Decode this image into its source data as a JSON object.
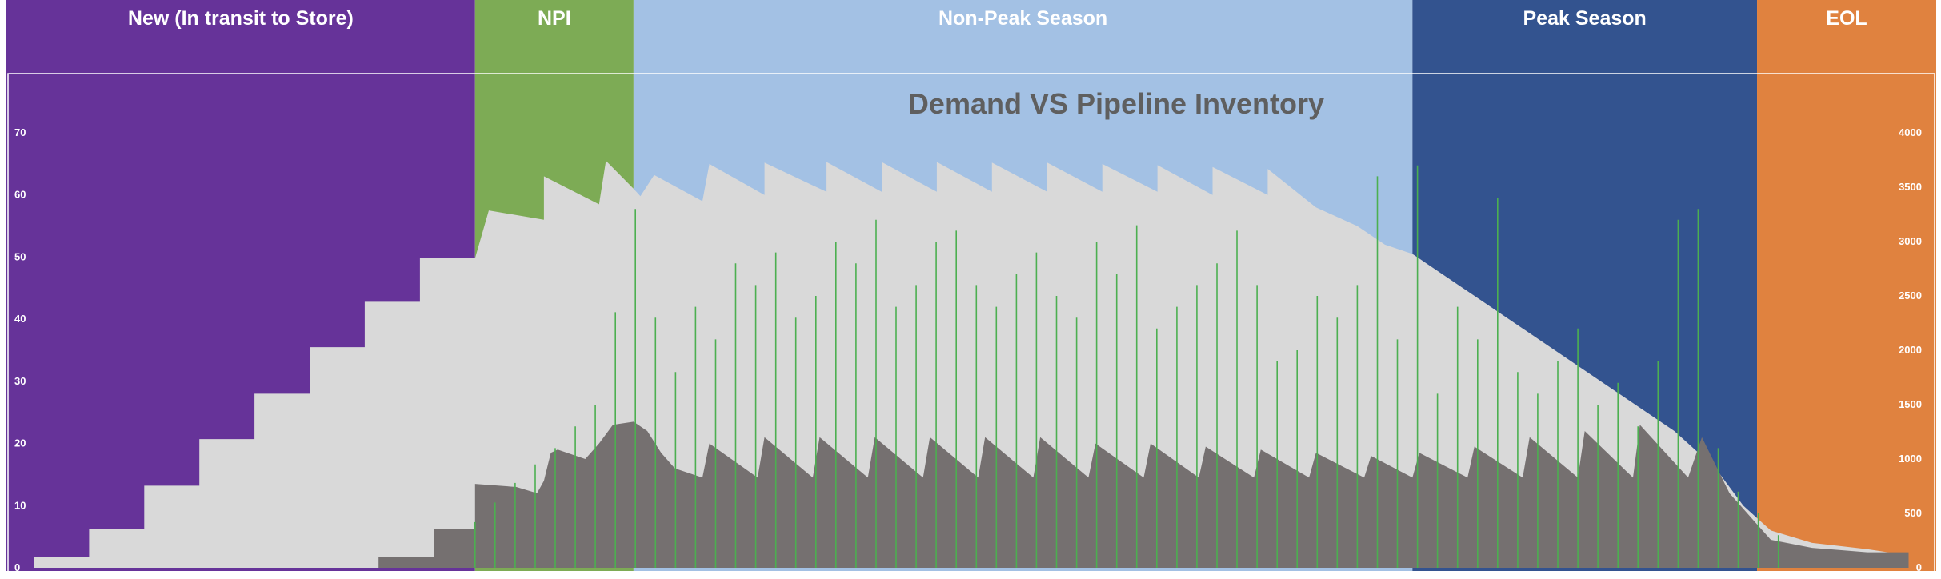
{
  "chart_data": {
    "type": "area",
    "title": "Demand VS Pipeline Inventory",
    "xlabel": "",
    "ylabel": "",
    "x_range": [
      0,
      280
    ],
    "left_axis": {
      "range": [
        0,
        70
      ],
      "ticks": [
        0,
        10,
        20,
        30,
        40,
        50,
        60,
        70
      ]
    },
    "right_axis": {
      "range": [
        0,
        4000
      ],
      "ticks": [
        0,
        500,
        1000,
        1500,
        2000,
        2500,
        3000,
        3500,
        4000
      ]
    },
    "grid": false,
    "legend": "none",
    "phases": [
      {
        "label": "New  (In transit to Store)",
        "start": 0,
        "end": 68,
        "color": "#663399"
      },
      {
        "label": "NPI",
        "start": 68,
        "end": 91,
        "color": "#7dab55"
      },
      {
        "label": "Non-Peak Season",
        "start": 91,
        "end": 204,
        "color": "#a3c1e4"
      },
      {
        "label": "Peak Season",
        "start": 204,
        "end": 254,
        "color": "#33538f"
      },
      {
        "label": "EOL",
        "start": 254,
        "end": 280,
        "color": "#e0823f"
      }
    ],
    "series": [
      {
        "axis": "left",
        "color": "#d9d9d9",
        "points": [
          [
            4,
            0
          ],
          [
            4,
            1.8
          ],
          [
            12,
            1.8
          ],
          [
            12,
            6.3
          ],
          [
            20,
            6.3
          ],
          [
            20,
            13.2
          ],
          [
            28,
            13.2
          ],
          [
            28,
            20.7
          ],
          [
            36,
            20.7
          ],
          [
            36,
            28
          ],
          [
            44,
            28
          ],
          [
            44,
            35.5
          ],
          [
            52,
            35.5
          ],
          [
            52,
            42.8
          ],
          [
            60,
            42.8
          ],
          [
            60,
            49.8
          ],
          [
            68,
            49.8
          ],
          [
            70,
            57.5
          ],
          [
            78,
            56
          ],
          [
            78,
            63
          ],
          [
            86,
            58.5
          ],
          [
            87,
            65.5
          ],
          [
            91,
            61
          ],
          [
            92,
            59.8
          ],
          [
            94,
            63.2
          ],
          [
            101,
            59
          ],
          [
            102,
            65
          ],
          [
            110,
            60
          ],
          [
            110,
            65.2
          ],
          [
            119,
            60.5
          ],
          [
            119,
            65.3
          ],
          [
            127,
            60.5
          ],
          [
            127,
            65.3
          ],
          [
            135,
            60.5
          ],
          [
            135,
            65.3
          ],
          [
            143,
            60.5
          ],
          [
            143,
            65.2
          ],
          [
            151,
            60.5
          ],
          [
            151,
            65.2
          ],
          [
            159,
            60.5
          ],
          [
            159,
            65
          ],
          [
            167,
            60.5
          ],
          [
            167,
            64.8
          ],
          [
            175,
            60
          ],
          [
            175,
            64.5
          ],
          [
            183,
            60
          ],
          [
            183,
            64.2
          ],
          [
            190,
            58
          ],
          [
            196,
            55
          ],
          [
            200,
            52
          ],
          [
            204,
            50.5
          ],
          [
            210,
            46
          ],
          [
            218,
            40
          ],
          [
            226,
            34
          ],
          [
            234,
            28
          ],
          [
            242,
            22
          ],
          [
            248,
            16
          ],
          [
            252,
            10
          ],
          [
            256,
            6
          ],
          [
            262,
            4
          ],
          [
            270,
            3
          ],
          [
            276,
            2
          ],
          [
            276,
            0
          ]
        ]
      },
      {
        "axis": "left",
        "color": "#757070",
        "points": [
          [
            54,
            0
          ],
          [
            54,
            1.8
          ],
          [
            62,
            1.8
          ],
          [
            62,
            6.3
          ],
          [
            68,
            6.3
          ],
          [
            68,
            13.5
          ],
          [
            74,
            13
          ],
          [
            77,
            12
          ],
          [
            78,
            14
          ],
          [
            79,
            18.5
          ],
          [
            80,
            19
          ],
          [
            84,
            17.5
          ],
          [
            86,
            20
          ],
          [
            88,
            23
          ],
          [
            91,
            23.5
          ],
          [
            93,
            22
          ],
          [
            95,
            18.5
          ],
          [
            97,
            16
          ],
          [
            101,
            14.5
          ],
          [
            102,
            20
          ],
          [
            109,
            14.5
          ],
          [
            110,
            21
          ],
          [
            117,
            14.5
          ],
          [
            118,
            21
          ],
          [
            125,
            14.5
          ],
          [
            126,
            21
          ],
          [
            133,
            14.5
          ],
          [
            134,
            21
          ],
          [
            141,
            14.5
          ],
          [
            142,
            21
          ],
          [
            149,
            14.5
          ],
          [
            150,
            21
          ],
          [
            157,
            14.5
          ],
          [
            158,
            20
          ],
          [
            165,
            14.5
          ],
          [
            166,
            20
          ],
          [
            173,
            14.5
          ],
          [
            174,
            19.5
          ],
          [
            181,
            14.5
          ],
          [
            182,
            19
          ],
          [
            189,
            14.5
          ],
          [
            190,
            18.5
          ],
          [
            197,
            14.5
          ],
          [
            198,
            18
          ],
          [
            204,
            14.5
          ],
          [
            205,
            18.5
          ],
          [
            212,
            14.5
          ],
          [
            213,
            19.5
          ],
          [
            220,
            14.5
          ],
          [
            221,
            21
          ],
          [
            228,
            14.5
          ],
          [
            229,
            22
          ],
          [
            236,
            14.5
          ],
          [
            237,
            23
          ],
          [
            244,
            14.5
          ],
          [
            246,
            21
          ],
          [
            250,
            12
          ],
          [
            254,
            7
          ],
          [
            256,
            4.5
          ],
          [
            262,
            3.2
          ],
          [
            270,
            2.5
          ],
          [
            276,
            2.5
          ],
          [
            276,
            0
          ]
        ]
      }
    ],
    "demand_bars": {
      "axis": "right",
      "color": "#4caf50",
      "start": 68,
      "end": 260,
      "representative_values": [
        420,
        600,
        780,
        950,
        1100,
        1300,
        1500,
        2350,
        3300,
        2300,
        1800,
        2400,
        2100,
        2800,
        2600,
        2900,
        2300,
        2500,
        3000,
        2800,
        3200,
        2400,
        2600,
        3000,
        3100,
        2600,
        2400,
        2700,
        2900,
        2500,
        2300,
        3000,
        2700,
        3150,
        2200,
        2400,
        2600,
        2800,
        3100,
        2600,
        1900,
        2000,
        2500,
        2300,
        2600,
        3600,
        2100,
        3700,
        1600,
        2400,
        2100,
        3400,
        1800,
        1600,
        1900,
        2200,
        1500,
        1700,
        1300,
        1900,
        3200,
        3300,
        1100,
        700,
        500,
        300
      ]
    }
  }
}
